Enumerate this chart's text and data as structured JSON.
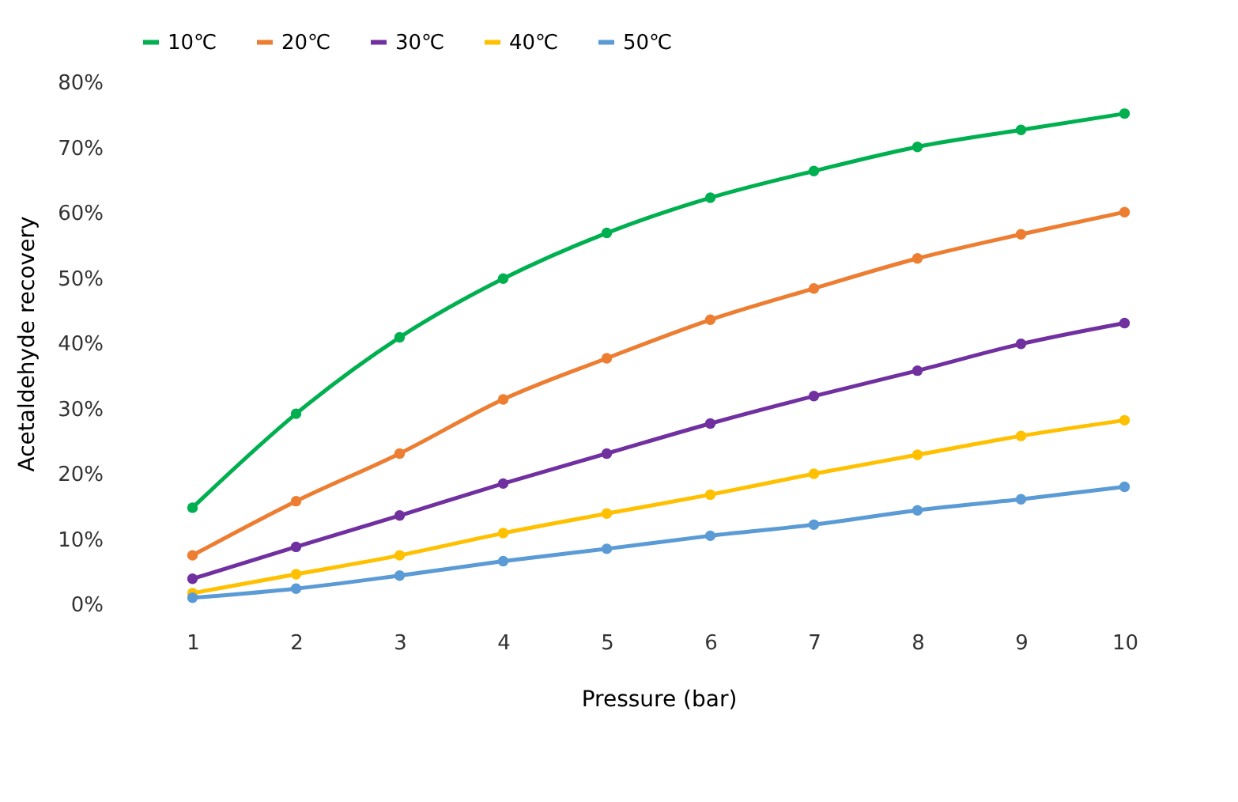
{
  "chart_data": {
    "type": "line",
    "xlabel": "Pressure (bar)",
    "ylabel": "Acetaldehyde recovery",
    "categories": [
      "1",
      "2",
      "3",
      "4",
      "5",
      "6",
      "7",
      "8",
      "9",
      "10"
    ],
    "ylim": [
      0,
      80
    ],
    "yticks": [
      {
        "value": 0,
        "label": "0%"
      },
      {
        "value": 10,
        "label": "10%"
      },
      {
        "value": 20,
        "label": "20%"
      },
      {
        "value": 30,
        "label": "30%"
      },
      {
        "value": 40,
        "label": "40%"
      },
      {
        "value": 50,
        "label": "50%"
      },
      {
        "value": 60,
        "label": "60%"
      },
      {
        "value": 70,
        "label": "70%"
      },
      {
        "value": 80,
        "label": "80%"
      }
    ],
    "grid": false,
    "legend": "top",
    "marker": "circle",
    "line_style": "solid",
    "series": [
      {
        "name": "10℃",
        "color": "#00b050",
        "values": [
          14.8,
          29.2,
          40.9,
          49.9,
          56.9,
          62.3,
          66.4,
          70.1,
          72.7,
          75.2
        ]
      },
      {
        "name": "20℃",
        "color": "#ed7d31",
        "values": [
          7.5,
          15.8,
          23.1,
          31.4,
          37.7,
          43.6,
          48.4,
          53,
          56.7,
          60.1
        ]
      },
      {
        "name": "30℃",
        "color": "#7030a0",
        "values": [
          3.9,
          8.8,
          13.6,
          18.5,
          23.1,
          27.7,
          31.9,
          35.8,
          39.9,
          43.1
        ]
      },
      {
        "name": "40℃",
        "color": "#ffc000",
        "values": [
          1.7,
          4.6,
          7.5,
          10.9,
          13.9,
          16.8,
          20,
          22.9,
          25.8,
          28.2
        ]
      },
      {
        "name": "50℃",
        "color": "#5b9bd5",
        "values": [
          1,
          2.4,
          4.4,
          6.6,
          8.5,
          10.5,
          12.2,
          14.4,
          16.1,
          18
        ]
      }
    ]
  }
}
